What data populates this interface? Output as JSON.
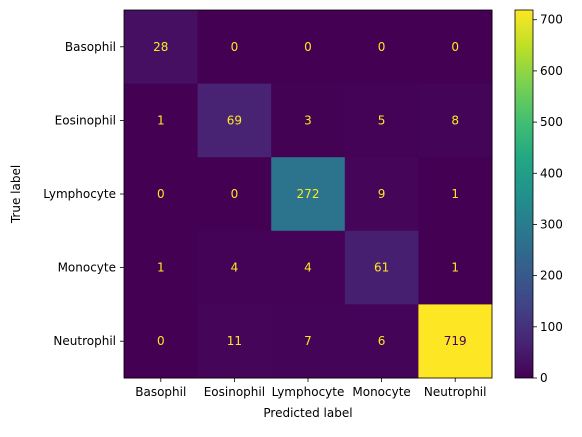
{
  "chart_data": {
    "type": "heatmap",
    "title": "",
    "xlabel": "Predicted label",
    "ylabel": "True label",
    "x_categories": [
      "Basophil",
      "Eosinophil",
      "Lymphocyte",
      "Monocyte",
      "Neutrophil"
    ],
    "y_categories": [
      "Basophil",
      "Eosinophil",
      "Lymphocyte",
      "Monocyte",
      "Neutrophil"
    ],
    "values": [
      [
        28,
        0,
        0,
        0,
        0
      ],
      [
        1,
        69,
        3,
        5,
        8
      ],
      [
        0,
        0,
        272,
        9,
        1
      ],
      [
        1,
        4,
        4,
        61,
        1
      ],
      [
        0,
        11,
        7,
        6,
        719
      ]
    ],
    "colormap": "viridis",
    "colorbar_range": [
      0,
      719
    ],
    "colorbar_ticks": [
      0,
      100,
      200,
      300,
      400,
      500,
      600,
      700
    ],
    "text_color_dark_cells": "#fde725",
    "text_color_light_cells": "#440154",
    "grid": false
  }
}
